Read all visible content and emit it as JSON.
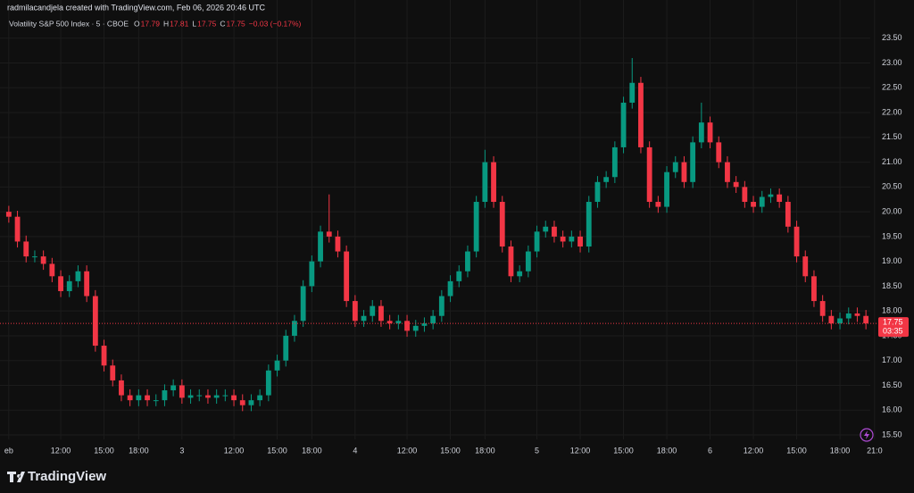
{
  "chart_data": {
    "type": "candlestick",
    "attribution": "radmilacandjela created with TradingView.com, Feb 06, 2026 20:46 UTC",
    "title": "Volatility S&P 500 Index · 5 · CBOE",
    "legend": [
      {
        "label": "O",
        "value": 17.79
      },
      {
        "label": "H",
        "value": 17.81
      },
      {
        "label": "L",
        "value": 17.75
      },
      {
        "label": "C",
        "value": 17.75
      }
    ],
    "change_label": "−0.03 (−0.17%)",
    "last_price": 17.75,
    "countdown": "03:35",
    "branding": "TradingView",
    "up_color": "#089981",
    "down_color": "#f23645",
    "grid": true,
    "categories": [
      "eb",
      null,
      null,
      null,
      null,
      null,
      "12:00",
      null,
      null,
      null,
      null,
      "15:00",
      null,
      null,
      null,
      "18:00",
      null,
      null,
      null,
      null,
      "3",
      null,
      null,
      null,
      null,
      null,
      "12:00",
      null,
      null,
      null,
      null,
      "15:00",
      null,
      null,
      null,
      "18:00",
      null,
      null,
      null,
      null,
      "4",
      null,
      null,
      null,
      null,
      null,
      "12:00",
      null,
      null,
      null,
      null,
      "15:00",
      null,
      null,
      null,
      "18:00",
      null,
      null,
      null,
      null,
      null,
      "5",
      null,
      null,
      null,
      null,
      "12:00",
      null,
      null,
      null,
      null,
      "15:00",
      null,
      null,
      null,
      null,
      "18:00",
      null,
      null,
      null,
      null,
      "6",
      null,
      null,
      null,
      null,
      "12:00",
      null,
      null,
      null,
      null,
      "15:00",
      null,
      null,
      null,
      null,
      "18:00",
      null,
      null,
      null,
      "21:0"
    ],
    "open": [
      20.0,
      19.9,
      19.4,
      19.1,
      19.1,
      18.95,
      18.7,
      18.4,
      18.6,
      18.8,
      18.3,
      17.3,
      16.9,
      16.6,
      16.3,
      16.2,
      16.3,
      16.2,
      16.2,
      16.4,
      16.5,
      16.25,
      16.3,
      16.3,
      16.25,
      16.3,
      16.3,
      16.2,
      16.1,
      16.2,
      16.3,
      16.8,
      17.0,
      17.5,
      17.8,
      18.5,
      19.0,
      19.6,
      19.5,
      19.2,
      18.2,
      17.8,
      17.9,
      18.1,
      17.8,
      17.75,
      17.8,
      17.6,
      17.7,
      17.75,
      17.9,
      18.3,
      18.6,
      18.8,
      19.2,
      20.2,
      21.0,
      20.2,
      19.3,
      18.7,
      18.8,
      19.2,
      19.6,
      19.7,
      19.5,
      19.4,
      19.5,
      19.3,
      20.2,
      20.6,
      20.7,
      21.3,
      22.2,
      22.6,
      21.3,
      20.2,
      20.1,
      20.8,
      21.0,
      20.6,
      21.4,
      21.8,
      21.4,
      21.0,
      20.6,
      20.5,
      20.2,
      20.1,
      20.3,
      20.35,
      20.2,
      19.7,
      19.1,
      18.7,
      18.2,
      17.9,
      17.75,
      17.85,
      17.95,
      17.9,
      null
    ],
    "high": [
      20.12,
      20.02,
      19.52,
      19.22,
      19.22,
      19.07,
      18.82,
      18.72,
      18.92,
      18.92,
      18.42,
      17.42,
      17.02,
      16.72,
      16.42,
      16.42,
      16.42,
      16.32,
      16.52,
      16.62,
      16.62,
      16.42,
      16.42,
      16.42,
      16.42,
      16.42,
      16.42,
      16.32,
      16.32,
      16.42,
      16.92,
      17.12,
      17.62,
      17.92,
      18.62,
      19.12,
      19.72,
      20.35,
      19.62,
      19.32,
      18.32,
      18.02,
      18.22,
      18.22,
      17.92,
      17.92,
      17.92,
      17.82,
      17.87,
      18.02,
      18.42,
      18.72,
      18.92,
      19.32,
      20.32,
      21.25,
      21.12,
      20.32,
      19.42,
      18.92,
      19.32,
      19.72,
      19.82,
      19.82,
      19.62,
      19.62,
      19.62,
      20.32,
      20.72,
      20.82,
      21.42,
      22.32,
      23.1,
      22.72,
      21.42,
      20.32,
      20.92,
      21.12,
      21.12,
      21.52,
      22.2,
      21.92,
      21.52,
      21.12,
      20.72,
      20.62,
      20.32,
      20.42,
      20.47,
      20.47,
      20.32,
      19.82,
      19.22,
      18.82,
      18.32,
      18.02,
      17.97,
      18.07,
      18.07,
      18.02,
      null
    ],
    "low": [
      19.78,
      19.28,
      18.98,
      18.98,
      18.83,
      18.58,
      18.28,
      18.28,
      18.48,
      18.18,
      17.18,
      16.78,
      16.48,
      16.18,
      16.08,
      16.08,
      16.08,
      16.08,
      16.08,
      16.28,
      16.13,
      16.13,
      16.18,
      16.13,
      16.13,
      16.18,
      16.08,
      15.98,
      15.98,
      16.08,
      16.18,
      16.68,
      16.88,
      17.38,
      17.68,
      18.38,
      18.88,
      19.38,
      19.08,
      18.08,
      17.68,
      17.68,
      17.78,
      17.68,
      17.63,
      17.63,
      17.48,
      17.48,
      17.58,
      17.63,
      17.78,
      18.18,
      18.48,
      18.68,
      19.08,
      20.08,
      20.08,
      19.18,
      18.58,
      18.58,
      18.68,
      19.08,
      19.48,
      19.38,
      19.28,
      19.28,
      19.18,
      19.18,
      20.08,
      20.48,
      20.58,
      21.18,
      22.08,
      21.18,
      20.08,
      19.98,
      19.98,
      20.68,
      20.48,
      20.48,
      21.28,
      21.28,
      20.88,
      20.48,
      20.38,
      20.08,
      19.98,
      19.98,
      20.18,
      20.08,
      19.58,
      18.98,
      18.58,
      18.08,
      17.78,
      17.63,
      17.63,
      17.73,
      17.78,
      17.63,
      null
    ],
    "close": [
      19.9,
      19.4,
      19.1,
      19.1,
      18.95,
      18.7,
      18.4,
      18.6,
      18.8,
      18.3,
      17.3,
      16.9,
      16.6,
      16.3,
      16.2,
      16.3,
      16.2,
      16.2,
      16.4,
      16.5,
      16.25,
      16.3,
      16.3,
      16.25,
      16.3,
      16.3,
      16.2,
      16.1,
      16.2,
      16.3,
      16.8,
      17.0,
      17.5,
      17.8,
      18.5,
      19.0,
      19.6,
      19.5,
      19.2,
      18.2,
      17.8,
      17.9,
      18.1,
      17.8,
      17.75,
      17.8,
      17.6,
      17.7,
      17.75,
      17.9,
      18.3,
      18.6,
      18.8,
      19.2,
      20.2,
      21.0,
      20.2,
      19.3,
      18.7,
      18.8,
      19.2,
      19.6,
      19.7,
      19.5,
      19.4,
      19.5,
      19.3,
      20.2,
      20.6,
      20.7,
      21.3,
      22.2,
      22.6,
      21.3,
      20.2,
      20.1,
      20.8,
      21.0,
      20.6,
      21.4,
      21.8,
      21.4,
      21.0,
      20.6,
      20.5,
      20.2,
      20.1,
      20.3,
      20.35,
      20.2,
      19.7,
      19.1,
      18.7,
      18.2,
      17.9,
      17.75,
      17.85,
      17.95,
      17.9,
      17.75,
      null
    ],
    "ylim": [
      15.41,
      23.73
    ],
    "yticks": [
      {
        "value": 15.5,
        "label": "15.50"
      },
      {
        "value": 16,
        "label": "16.00"
      },
      {
        "value": 16.5,
        "label": "16.50"
      },
      {
        "value": 17,
        "label": "17.00"
      },
      {
        "value": 17.5,
        "label": "17.50"
      },
      {
        "value": 18,
        "label": "18.00"
      },
      {
        "value": 18.5,
        "label": "18.50"
      },
      {
        "value": 19,
        "label": "19.00"
      },
      {
        "value": 19.5,
        "label": "19.50"
      },
      {
        "value": 20,
        "label": "20.00"
      },
      {
        "value": 20.5,
        "label": "20.50"
      },
      {
        "value": 21,
        "label": "21.00"
      },
      {
        "value": 21.5,
        "label": "21.50"
      },
      {
        "value": 22,
        "label": "22.00"
      },
      {
        "value": 22.5,
        "label": "22.50"
      },
      {
        "value": 23,
        "label": "23.00"
      },
      {
        "value": 23.5,
        "label": "23.50"
      }
    ]
  }
}
